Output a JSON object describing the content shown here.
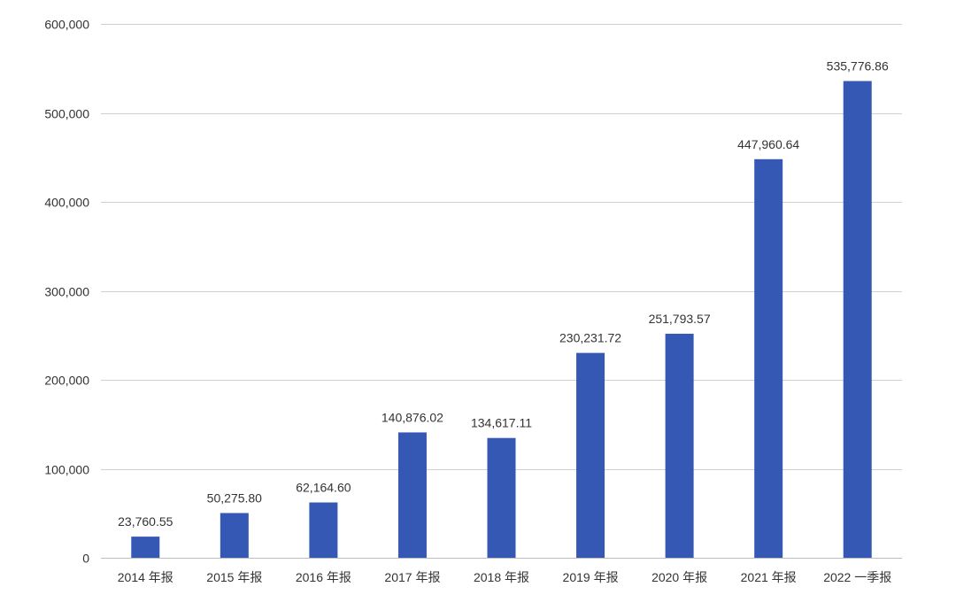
{
  "chart_data": {
    "type": "bar",
    "categories": [
      "2014 年报",
      "2015 年报",
      "2016 年报",
      "2017 年报",
      "2018 年报",
      "2019 年报",
      "2020 年报",
      "2021 年报",
      "2022 一季报"
    ],
    "values": [
      23760.55,
      50275.8,
      62164.6,
      140876.02,
      134617.11,
      230231.72,
      251793.57,
      447960.64,
      535776.86
    ],
    "data_labels": [
      "23,760.55",
      "50,275.80",
      "62,164.60",
      "140,876.02",
      "134,617.11",
      "230,231.72",
      "251,793.57",
      "447,960.64",
      "535,776.86"
    ],
    "ylim": [
      0,
      600000
    ],
    "yticks": [
      0,
      100000,
      200000,
      300000,
      400000,
      500000,
      600000
    ],
    "ytick_labels": [
      "0",
      "100,000",
      "200,000",
      "300,000",
      "400,000",
      "500,000",
      "600,000"
    ],
    "title": "",
    "xlabel": "",
    "ylabel": "",
    "grid": true,
    "legend": false,
    "bar_color": "#3558b5"
  }
}
